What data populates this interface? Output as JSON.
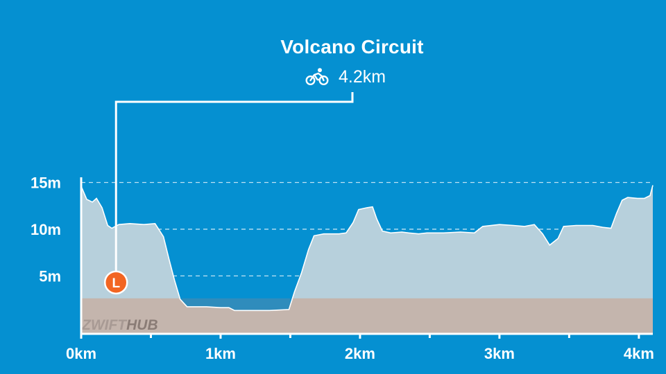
{
  "route": {
    "name": "Volcano Circuit",
    "distance": "4.2km",
    "sport_icon": "bicycle-icon"
  },
  "marker": {
    "label": "L",
    "meaning": "lap banner",
    "color": "#f26522"
  },
  "watermark": {
    "part1": "ZWIFT",
    "part2": "HUB"
  },
  "colors": {
    "background": "#0590d1",
    "profile_fill": "#b7d0dc",
    "ground_fill": "#c4b5ad",
    "water_band": "#2f8cbc",
    "line": "#ffffff"
  },
  "chart_data": {
    "type": "area",
    "title": "Volcano Circuit",
    "xlabel": "",
    "ylabel": "",
    "x_unit": "km",
    "y_unit": "m",
    "xlim": [
      0,
      4.1
    ],
    "ylim": [
      -1.2,
      16
    ],
    "grid": true,
    "x_ticks": [
      {
        "value": 0,
        "label": "0km"
      },
      {
        "value": 1,
        "label": "1km"
      },
      {
        "value": 2,
        "label": "2km"
      },
      {
        "value": 3,
        "label": "3km"
      },
      {
        "value": 4,
        "label": "4km"
      }
    ],
    "y_ticks": [
      {
        "value": 5,
        "label": "5m"
      },
      {
        "value": 10,
        "label": "10m"
      },
      {
        "value": 15,
        "label": "15m"
      }
    ],
    "x_minor_ticks": [
      0.5,
      1.5,
      2.5,
      3.5
    ],
    "series": [
      {
        "points": [
          [
            0.0,
            14.6
          ],
          [
            0.04,
            13.2
          ],
          [
            0.08,
            12.9
          ],
          [
            0.11,
            13.3
          ],
          [
            0.15,
            12.3
          ],
          [
            0.19,
            10.4
          ],
          [
            0.22,
            10.1
          ],
          [
            0.27,
            10.5
          ],
          [
            0.35,
            10.6
          ],
          [
            0.45,
            10.5
          ],
          [
            0.53,
            10.6
          ],
          [
            0.59,
            9.2
          ],
          [
            0.63,
            6.8
          ],
          [
            0.67,
            4.5
          ],
          [
            0.71,
            2.5
          ],
          [
            0.76,
            1.7
          ],
          [
            0.82,
            1.7
          ],
          [
            0.9,
            1.7
          ],
          [
            1.0,
            1.6
          ],
          [
            1.06,
            1.6
          ],
          [
            1.1,
            1.3
          ],
          [
            1.2,
            1.3
          ],
          [
            1.35,
            1.3
          ],
          [
            1.49,
            1.4
          ],
          [
            1.53,
            3.3
          ],
          [
            1.58,
            5.3
          ],
          [
            1.63,
            7.8
          ],
          [
            1.67,
            9.3
          ],
          [
            1.74,
            9.5
          ],
          [
            1.85,
            9.5
          ],
          [
            1.9,
            9.6
          ],
          [
            1.95,
            10.7
          ],
          [
            1.99,
            12.1
          ],
          [
            2.05,
            12.3
          ],
          [
            2.09,
            12.4
          ],
          [
            2.12,
            11.1
          ],
          [
            2.16,
            9.8
          ],
          [
            2.22,
            9.6
          ],
          [
            2.3,
            9.7
          ],
          [
            2.35,
            9.6
          ],
          [
            2.42,
            9.5
          ],
          [
            2.48,
            9.6
          ],
          [
            2.6,
            9.6
          ],
          [
            2.72,
            9.7
          ],
          [
            2.82,
            9.6
          ],
          [
            2.88,
            10.3
          ],
          [
            3.0,
            10.5
          ],
          [
            3.1,
            10.4
          ],
          [
            3.18,
            10.3
          ],
          [
            3.25,
            10.5
          ],
          [
            3.31,
            9.5
          ],
          [
            3.36,
            8.3
          ],
          [
            3.42,
            9.0
          ],
          [
            3.46,
            10.3
          ],
          [
            3.55,
            10.4
          ],
          [
            3.67,
            10.4
          ],
          [
            3.74,
            10.2
          ],
          [
            3.8,
            10.1
          ],
          [
            3.84,
            11.7
          ],
          [
            3.88,
            13.1
          ],
          [
            3.92,
            13.4
          ],
          [
            3.99,
            13.3
          ],
          [
            4.04,
            13.3
          ],
          [
            4.08,
            13.6
          ],
          [
            4.1,
            14.7
          ]
        ]
      }
    ],
    "marker_x": 0.25,
    "marker_y": 4.3
  }
}
